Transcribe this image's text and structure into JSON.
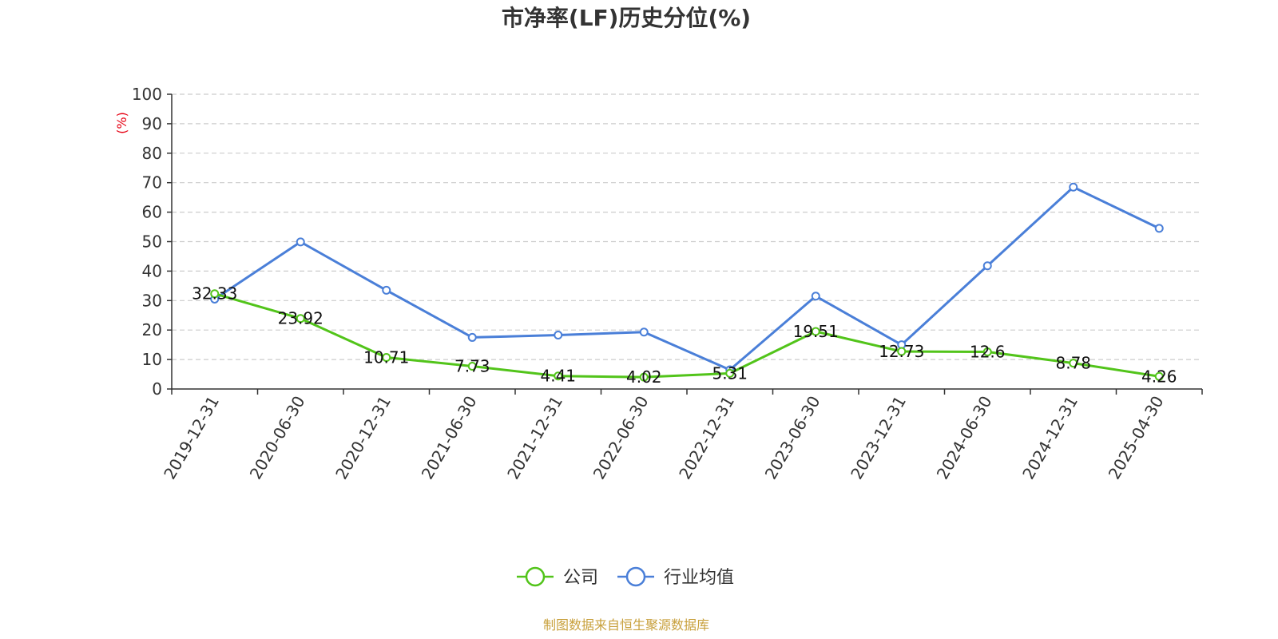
{
  "chart_data": {
    "type": "line",
    "title": "市净率(LF)历史分位(%)",
    "ylabel": "(%)",
    "ylim": [
      0,
      100
    ],
    "yticks": [
      0,
      10,
      20,
      30,
      40,
      50,
      60,
      70,
      80,
      90,
      100
    ],
    "grid": true,
    "legend_position": "bottom",
    "categories": [
      "2019-12-31",
      "2020-06-30",
      "2020-12-31",
      "2021-06-30",
      "2021-12-31",
      "2022-06-30",
      "2022-12-31",
      "2023-06-30",
      "2023-12-31",
      "2024-06-30",
      "2024-12-31",
      "2025-04-30"
    ],
    "series": [
      {
        "name": "公司",
        "color": "#52c41a",
        "values": [
          32.33,
          23.92,
          10.71,
          7.73,
          4.41,
          4.02,
          5.31,
          19.51,
          12.73,
          12.6,
          8.78,
          4.26
        ],
        "labels": [
          "32.33",
          "23.92",
          "10.71",
          "7.73",
          "4.41",
          "4.02",
          "5.31",
          "19.51",
          "12.73",
          "12.6",
          "8.78",
          "4.26"
        ]
      },
      {
        "name": "行业均值",
        "color": "#4a7fd8",
        "values": [
          30.5,
          49.9,
          33.5,
          17.5,
          18.3,
          19.3,
          6.5,
          31.5,
          15.0,
          41.8,
          68.5,
          54.5
        ]
      }
    ]
  },
  "source": "制图数据来自恒生聚源数据库"
}
